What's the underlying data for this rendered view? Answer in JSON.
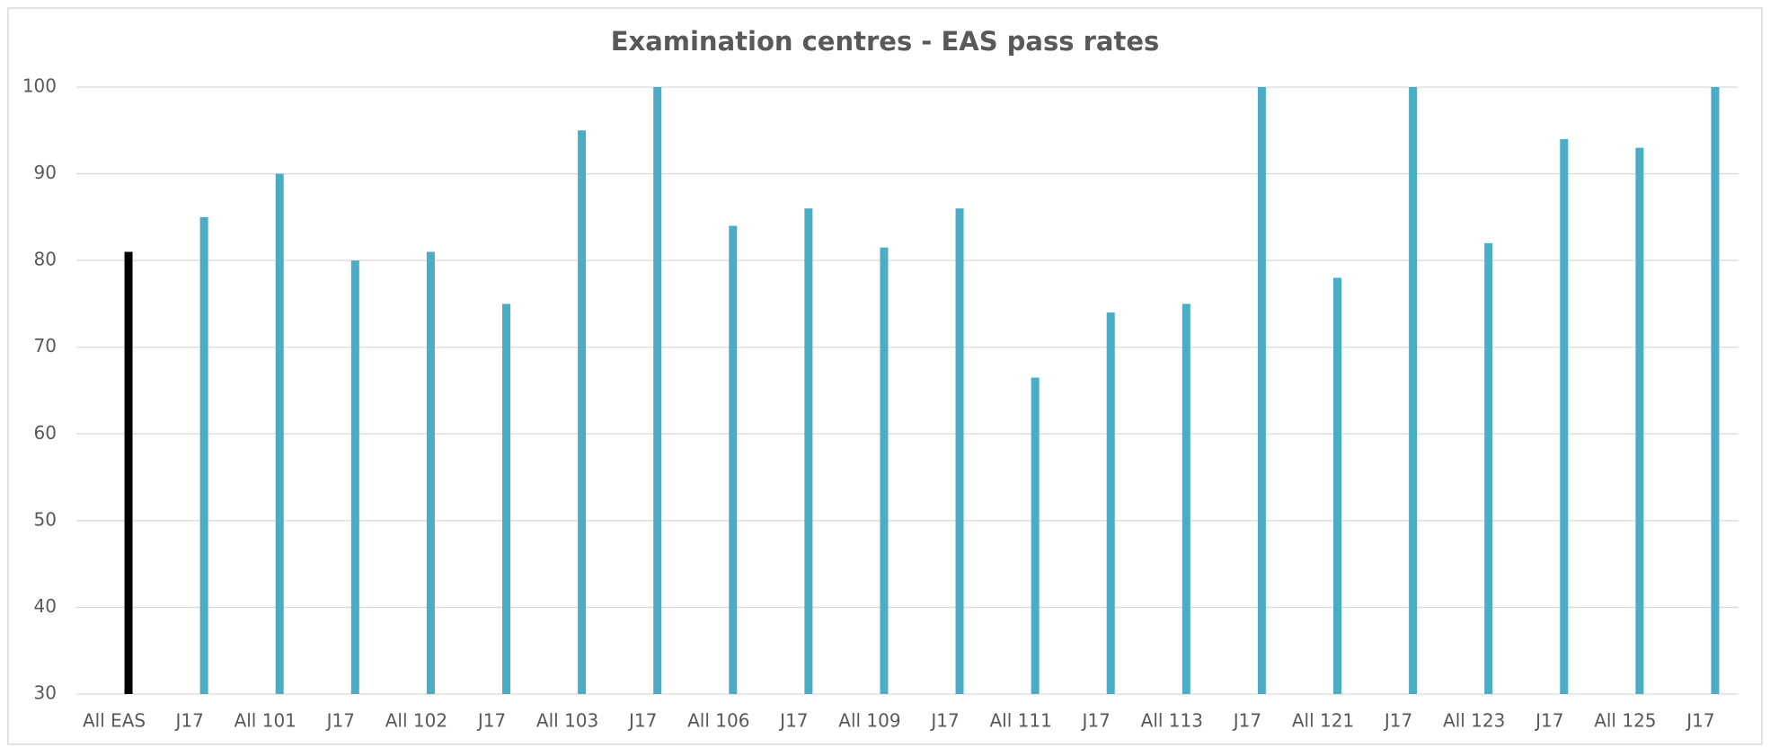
{
  "chart_data": {
    "type": "bar",
    "title": "Examination centres - EAS pass rates",
    "categories": [
      "All EAS",
      "J17",
      "All 101",
      "J17",
      "All 102",
      "J17",
      "All 103",
      "J17",
      "All 106",
      "J17",
      "All 109",
      "J17",
      "All 111",
      "J17",
      "All 113",
      "J17",
      "All 121",
      "J17",
      "All 123",
      "J17",
      "All 125",
      "J17"
    ],
    "values": [
      81,
      85,
      90,
      80,
      81,
      75,
      95,
      100,
      84,
      86,
      81.5,
      86,
      66.5,
      74,
      75,
      100,
      78,
      100,
      82,
      94,
      93,
      100
    ],
    "colors": [
      "#000000",
      "#4bacc6",
      "#4bacc6",
      "#4bacc6",
      "#4bacc6",
      "#4bacc6",
      "#4bacc6",
      "#4bacc6",
      "#4bacc6",
      "#4bacc6",
      "#4bacc6",
      "#4bacc6",
      "#4bacc6",
      "#4bacc6",
      "#4bacc6",
      "#4bacc6",
      "#4bacc6",
      "#4bacc6",
      "#4bacc6",
      "#4bacc6",
      "#4bacc6",
      "#4bacc6"
    ],
    "ylim": [
      30,
      100
    ],
    "yticks": [
      30,
      40,
      50,
      60,
      70,
      80,
      90,
      100
    ],
    "grid": true
  }
}
